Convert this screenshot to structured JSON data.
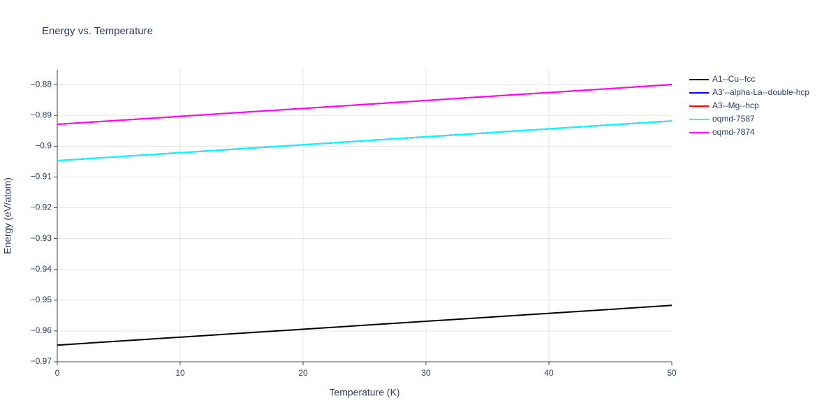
{
  "chart_data": {
    "type": "line",
    "title": "Energy vs. Temperature",
    "x_label": "Temperature (K)",
    "y_label": "Energy (eV/atom)",
    "xlim": [
      0,
      50
    ],
    "xticks": [
      0,
      10,
      20,
      30,
      40,
      50
    ],
    "ylim": [
      -0.97,
      -0.8752
    ],
    "yticks": [
      {
        "value": -0.97,
        "label": "−0.97"
      },
      {
        "value": -0.96,
        "label": "−0.96"
      },
      {
        "value": -0.95,
        "label": "−0.95"
      },
      {
        "value": -0.94,
        "label": "−0.94"
      },
      {
        "value": -0.93,
        "label": "−0.93"
      },
      {
        "value": -0.92,
        "label": "−0.92"
      },
      {
        "value": -0.91,
        "label": "−0.91"
      },
      {
        "value": -0.9,
        "label": "−0.9"
      },
      {
        "value": -0.89,
        "label": "−0.89"
      },
      {
        "value": -0.88,
        "label": "−0.88"
      }
    ],
    "grid": true,
    "legend": "right",
    "x": [
      0,
      50
    ],
    "series": [
      {
        "name": "A1--Cu--fcc",
        "color": "#000000",
        "values": [
          -0.9646,
          -0.9517
        ]
      },
      {
        "name": "A3'--alpha-La--double-hcp",
        "color": "#0000ff",
        "values": [
          -0.9047,
          -0.8918
        ]
      },
      {
        "name": "A3--Mg--hcp",
        "color": "#ff0000",
        "values": [
          -0.8929,
          -0.88
        ]
      },
      {
        "name": "oqmd-7587",
        "color": "#00ffff",
        "values": [
          -0.9047,
          -0.8918
        ]
      },
      {
        "name": "oqmd-7874",
        "color": "#ff00ff",
        "values": [
          -0.8929,
          -0.88
        ]
      }
    ]
  }
}
